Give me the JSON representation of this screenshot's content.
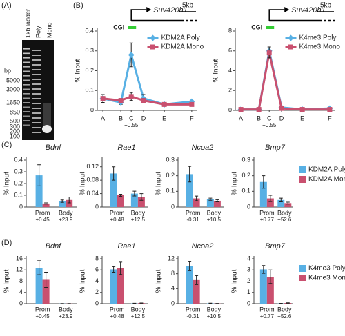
{
  "panel_labels": [
    "(A)",
    "(B)",
    "(C)",
    "(D)"
  ],
  "gel": {
    "lanes": [
      "1kb ladder",
      "Poly",
      "Mono"
    ],
    "unit": "bp",
    "sizes": [
      5000,
      3000,
      1650,
      850,
      500,
      300,
      200,
      100
    ]
  },
  "chart_data": [
    {
      "type": "line",
      "gene": "Suv420h1",
      "scale": "5kb",
      "cgi_label": "CGI",
      "y_label": "% Input",
      "categories": [
        "A",
        "B",
        "C",
        "D",
        "E",
        "F"
      ],
      "category_sublabels": [
        null,
        null,
        "+0.55",
        null,
        null,
        null
      ],
      "ylim": [
        0,
        0.4
      ],
      "yticks": [
        0,
        0.1,
        0.2,
        0.3,
        0.4
      ],
      "legend": "upper right",
      "series": [
        {
          "name": "KDM2A Poly",
          "color": "#58b0e4",
          "marker": "diamond",
          "values": [
            0.06,
            0.04,
            0.28,
            0.06,
            0.03,
            0.045
          ],
          "errors": [
            0.02,
            0.01,
            0.06,
            0.02,
            0.005,
            0.005
          ]
        },
        {
          "name": "KDM2A Mono",
          "color": "#c9506f",
          "marker": "square",
          "values": [
            0.06,
            0.05,
            0.07,
            0.05,
            0.03,
            0.03
          ],
          "errors": [
            0.01,
            0.01,
            0.02,
            0.01,
            0.005,
            0.005
          ]
        }
      ]
    },
    {
      "type": "line",
      "gene": "Suv420h1",
      "scale": "5kb",
      "cgi_label": "CGI",
      "y_label": "% Input",
      "categories": [
        "A",
        "B",
        "C",
        "D",
        "E",
        "F"
      ],
      "category_sublabels": [
        null,
        null,
        "+0.55",
        null,
        null,
        null
      ],
      "ylim": [
        0,
        8
      ],
      "yticks": [
        0,
        2,
        4,
        6,
        8
      ],
      "legend": "upper right",
      "series": [
        {
          "name": "K4me3 Poly",
          "color": "#58b0e4",
          "marker": "diamond",
          "values": [
            0.1,
            0.1,
            6.0,
            0.3,
            0.1,
            0.2
          ],
          "errors": [
            0.05,
            0.05,
            0.4,
            0.1,
            0.05,
            0.05
          ]
        },
        {
          "name": "K4me3 Mono",
          "color": "#c9506f",
          "marker": "square",
          "values": [
            0.1,
            0.1,
            5.8,
            0.2,
            0.1,
            0.1
          ],
          "errors": [
            0.05,
            0.05,
            0.5,
            0.1,
            0.05,
            0.05
          ]
        }
      ]
    },
    {
      "type": "bar",
      "title": "Bdnf",
      "y_label": "% Input",
      "categories": [
        "Prom",
        "Body"
      ],
      "category_sublabels": [
        "+0.45",
        "+23.9"
      ],
      "ylim": [
        0,
        0.4
      ],
      "yticks": [
        0,
        0.1,
        0.2,
        0.3,
        0.4
      ],
      "series": [
        {
          "color": "#58b0e4",
          "values": [
            0.27,
            0.05
          ],
          "errors": [
            0.09,
            0.01
          ]
        },
        {
          "color": "#c9506f",
          "values": [
            0.03,
            0.06
          ],
          "errors": [
            0.005,
            0.025
          ]
        }
      ]
    },
    {
      "type": "bar",
      "title": "Rae1",
      "y_label": "% Input",
      "categories": [
        "Prom",
        "Body"
      ],
      "category_sublabels": [
        "+0.48",
        "+12.5"
      ],
      "ylim": [
        0,
        0.14
      ],
      "yticks": [
        0,
        0.04,
        0.08,
        0.12
      ],
      "series": [
        {
          "color": "#58b0e4",
          "values": [
            0.1,
            0.04
          ],
          "errors": [
            0.02,
            0.007
          ]
        },
        {
          "color": "#c9506f",
          "values": [
            0.035,
            0.03
          ],
          "errors": [
            0.003,
            0.01
          ]
        }
      ]
    },
    {
      "type": "bar",
      "title": "Ncoa2",
      "y_label": "% Input",
      "categories": [
        "Prom",
        "Body"
      ],
      "category_sublabels": [
        "-0.31",
        "+10.5"
      ],
      "ylim": [
        0,
        0.3
      ],
      "yticks": [
        0,
        0.1,
        0.2,
        0.3
      ],
      "series": [
        {
          "color": "#58b0e4",
          "values": [
            0.21,
            0.05
          ],
          "errors": [
            0.05,
            0.007
          ]
        },
        {
          "color": "#c9506f",
          "values": [
            0.055,
            0.04
          ],
          "errors": [
            0.015,
            0.007
          ]
        }
      ]
    },
    {
      "type": "bar",
      "title": "Bmp7",
      "y_label": "% Input",
      "categories": [
        "Prom",
        "Body"
      ],
      "category_sublabels": [
        "+0.77",
        "+52.6"
      ],
      "ylim": [
        0,
        0.3
      ],
      "yticks": [
        0,
        0.1,
        0.2,
        0.3
      ],
      "legend": "right",
      "series": [
        {
          "name": "KDM2A Poly",
          "color": "#58b0e4",
          "values": [
            0.16,
            0.045
          ],
          "errors": [
            0.04,
            0.012
          ]
        },
        {
          "name": "KDM2A Mono",
          "color": "#c9506f",
          "values": [
            0.055,
            0.025
          ],
          "errors": [
            0.02,
            0.006
          ]
        }
      ]
    },
    {
      "type": "bar",
      "title": "Bdnf",
      "y_label": "% Input",
      "categories": [
        "Prom",
        "Body"
      ],
      "category_sublabels": [
        "+0.45",
        "+23.9"
      ],
      "ylim": [
        0,
        16
      ],
      "yticks": [
        0,
        4,
        8,
        12,
        16
      ],
      "series": [
        {
          "color": "#58b0e4",
          "values": [
            12.8,
            0.05
          ],
          "errors": [
            2.5,
            0.02
          ]
        },
        {
          "color": "#c9506f",
          "values": [
            8.5,
            0.05
          ],
          "errors": [
            2.7,
            0.02
          ]
        }
      ]
    },
    {
      "type": "bar",
      "title": "Rae1",
      "y_label": "% Input",
      "categories": [
        "Prom",
        "Body"
      ],
      "category_sublabels": [
        "+0.48",
        "+12.5"
      ],
      "ylim": [
        0,
        8
      ],
      "yticks": [
        0,
        2,
        4,
        6,
        8
      ],
      "series": [
        {
          "color": "#58b0e4",
          "values": [
            6.1,
            0.05
          ],
          "errors": [
            0.5,
            0.02
          ]
        },
        {
          "color": "#c9506f",
          "values": [
            6.3,
            0.1
          ],
          "errors": [
            1.1,
            0.03
          ]
        }
      ]
    },
    {
      "type": "bar",
      "title": "Ncoa2",
      "y_label": "% Input",
      "categories": [
        "Prom",
        "Body"
      ],
      "category_sublabels": [
        "-0.31",
        "+10.5"
      ],
      "ylim": [
        0,
        12
      ],
      "yticks": [
        0,
        4,
        8,
        12
      ],
      "series": [
        {
          "color": "#58b0e4",
          "values": [
            10.0,
            0.1
          ],
          "errors": [
            1.2,
            0.03
          ]
        },
        {
          "color": "#c9506f",
          "values": [
            6.3,
            0.05
          ],
          "errors": [
            1.2,
            0.02
          ]
        }
      ]
    },
    {
      "type": "bar",
      "title": "Bmp7",
      "y_label": "% Input",
      "categories": [
        "Prom",
        "Body"
      ],
      "category_sublabels": [
        "+0.77",
        "+52.6"
      ],
      "ylim": [
        0,
        4
      ],
      "yticks": [
        0,
        1,
        2,
        3,
        4
      ],
      "legend": "right",
      "series": [
        {
          "name": "K4me3 Poly",
          "color": "#58b0e4",
          "values": [
            3.05,
            0.02
          ],
          "errors": [
            0.35,
            0.01
          ]
        },
        {
          "name": "K4me3 Mono",
          "color": "#c9506f",
          "values": [
            2.4,
            0.06
          ],
          "errors": [
            0.6,
            0.02
          ]
        }
      ]
    }
  ]
}
